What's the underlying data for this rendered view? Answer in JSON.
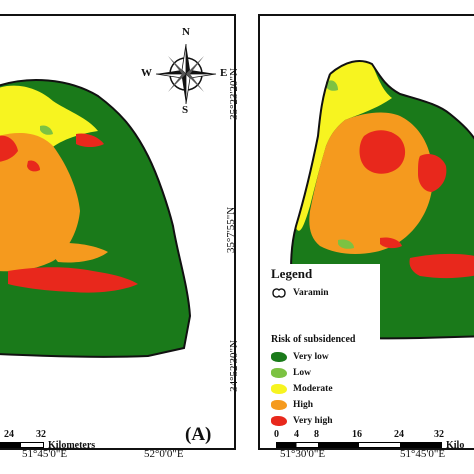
{
  "colors": {
    "very_low": "#1a7a1a",
    "low": "#7cc242",
    "moderate": "#f7f420",
    "high": "#f59a1e",
    "very_high": "#e8281c",
    "outline": "#111111"
  },
  "panel_a": {
    "letter": "(A)",
    "bottom_coords": [
      "51°45'0\"E",
      "52°0'0\"E"
    ],
    "scale_ticks": [
      "24",
      "32"
    ],
    "scale_unit": "Kilometers",
    "compass": {
      "n": "N",
      "s": "S",
      "e": "E",
      "w": "W",
      "icon": "compass-rose-icon"
    }
  },
  "panel_b": {
    "left_coords": [
      "35°23'20\"N",
      "35°7'55\"N",
      "34°52'30\"N"
    ],
    "bottom_coords": [
      "51°30'0\"E",
      "51°45'0\"E"
    ],
    "scale_ticks": [
      "0",
      "4",
      "8",
      "16",
      "24",
      "32"
    ],
    "scale_unit": "Kilo",
    "legend": {
      "title": "Legend",
      "boundary_label": "Varamin",
      "subtitle": "Risk of subsidenced",
      "items": [
        "Very low",
        "Low",
        "Moderate",
        "High",
        "Very high"
      ]
    }
  }
}
